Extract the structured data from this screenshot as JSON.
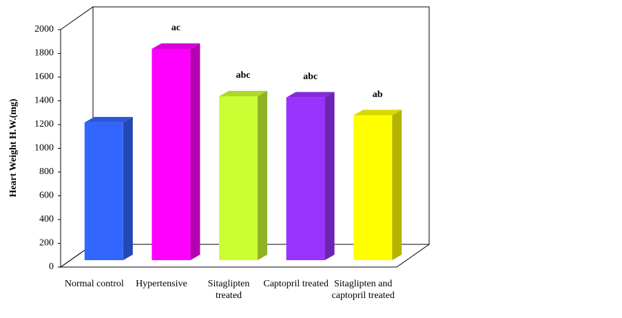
{
  "chart_data": {
    "type": "bar3d",
    "y_label": "Heart Weight H.W.(mg)",
    "categories": [
      "Normal control",
      "Hypertensive",
      "Sitaglipten treated",
      "Captopril treated",
      "Sitaglipten and captopril treated"
    ],
    "values": [
      1160,
      1780,
      1380,
      1370,
      1220
    ],
    "colors": [
      "#3366ff",
      "#ff00ff",
      "#ccff33",
      "#9933ff",
      "#ffff00"
    ],
    "annotations": [
      null,
      "ac",
      "abc",
      "abc",
      "ab"
    ],
    "ylim": [
      0,
      2000
    ],
    "yticks": [
      0,
      200,
      400,
      600,
      800,
      1000,
      1200,
      1400,
      1600,
      1800,
      2000
    ]
  }
}
